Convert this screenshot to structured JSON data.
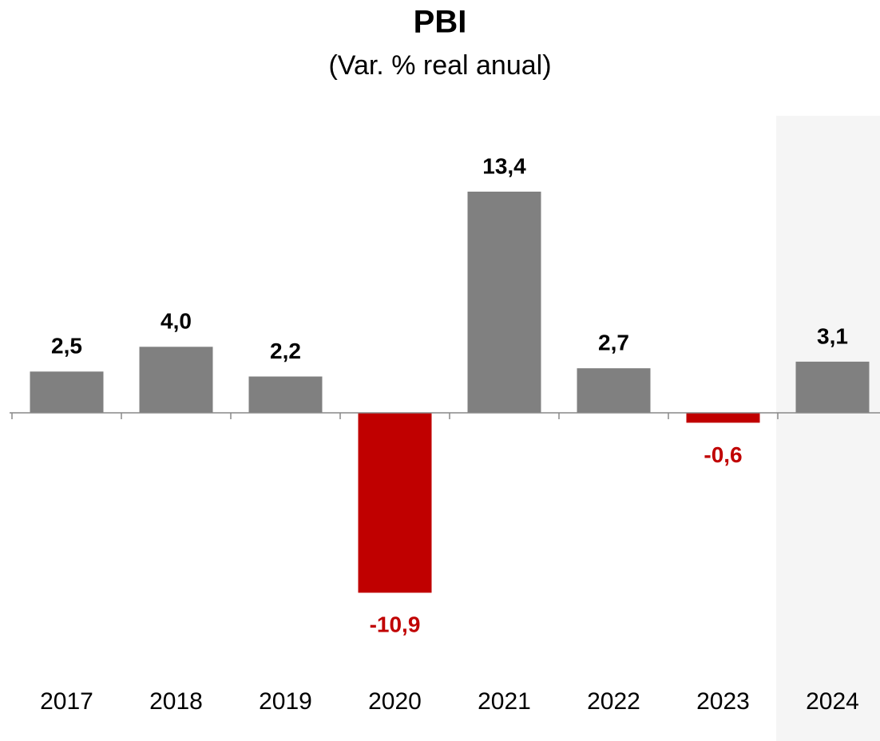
{
  "chart_data": {
    "type": "bar",
    "title": "PBI",
    "subtitle": "(Var. % real anual)",
    "categories": [
      "2017",
      "2018",
      "2019",
      "2020",
      "2021",
      "2022",
      "2023",
      "2024"
    ],
    "values": [
      2.5,
      4.0,
      2.2,
      -10.9,
      13.4,
      2.7,
      -0.6,
      3.1
    ],
    "value_labels": [
      "2,5",
      "4,0",
      "2,2",
      "-10,9",
      "13,4",
      "2,7",
      "-0,6",
      "3,1"
    ],
    "color": "#808080",
    "negative_color": "#c00000"
  }
}
